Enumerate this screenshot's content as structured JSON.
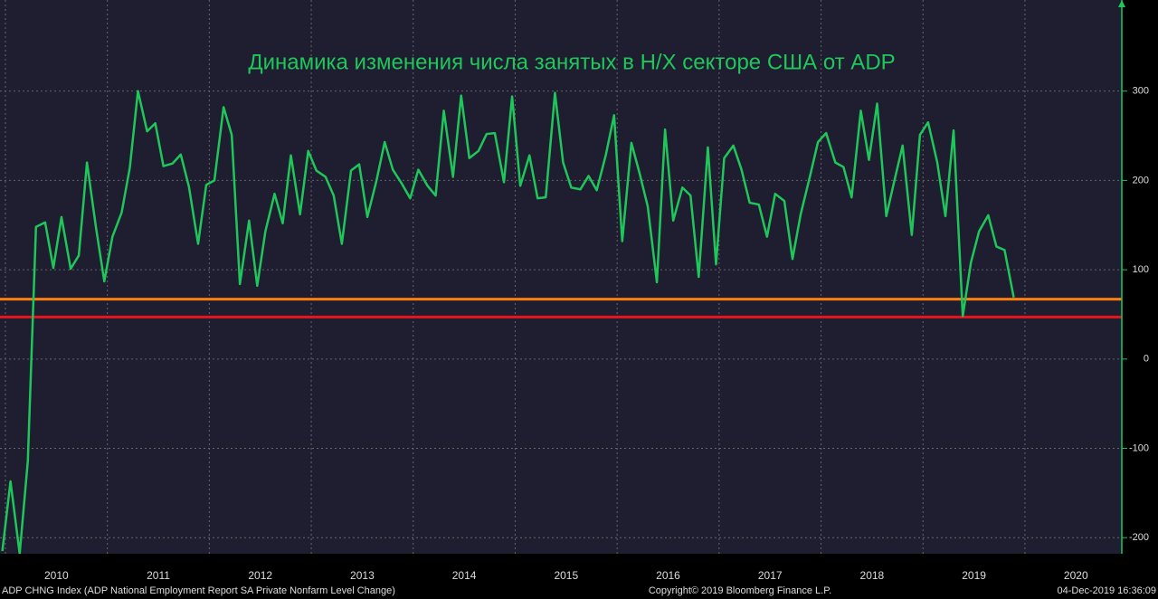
{
  "chart_data": {
    "type": "line",
    "title": "Динамика изменения числа занятых в Н/Х секторе США от ADP",
    "source": "ADP CHNG Index (ADP National Employment Report SA Private Nonfarm Level Change)",
    "copyright": "Copyright© 2019 Bloomberg Finance L.P.",
    "timestamp": "04-Dec-2019 16:36:09",
    "x": [
      2009.97,
      2010.05,
      2010.14,
      2010.22,
      2010.3,
      2010.39,
      2010.47,
      2010.55,
      2010.64,
      2010.72,
      2010.8,
      2010.89,
      2010.97,
      2011.05,
      2011.14,
      2011.22,
      2011.3,
      2011.39,
      2011.47,
      2011.55,
      2011.64,
      2011.72,
      2011.8,
      2011.89,
      2011.97,
      2012.05,
      2012.14,
      2012.22,
      2012.3,
      2012.39,
      2012.47,
      2012.55,
      2012.64,
      2012.72,
      2012.8,
      2012.89,
      2012.97,
      2013.05,
      2013.14,
      2013.22,
      2013.3,
      2013.39,
      2013.47,
      2013.55,
      2013.64,
      2013.72,
      2013.8,
      2013.89,
      2013.97,
      2014.05,
      2014.14,
      2014.22,
      2014.3,
      2014.39,
      2014.47,
      2014.55,
      2014.64,
      2014.72,
      2014.8,
      2014.89,
      2014.97,
      2015.05,
      2015.14,
      2015.22,
      2015.3,
      2015.39,
      2015.47,
      2015.55,
      2015.64,
      2015.72,
      2015.8,
      2015.89,
      2015.97,
      2016.05,
      2016.14,
      2016.22,
      2016.3,
      2016.39,
      2016.47,
      2016.55,
      2016.64,
      2016.72,
      2016.8,
      2016.89,
      2016.97,
      2017.05,
      2017.14,
      2017.22,
      2017.3,
      2017.39,
      2017.47,
      2017.55,
      2017.64,
      2017.72,
      2017.8,
      2017.89,
      2017.97,
      2018.05,
      2018.14,
      2018.22,
      2018.3,
      2018.39,
      2018.47,
      2018.55,
      2018.64,
      2018.72,
      2018.8,
      2018.89,
      2018.97,
      2019.05,
      2019.14,
      2019.22,
      2019.3,
      2019.39,
      2019.47,
      2019.55,
      2019.64,
      2019.72,
      2019.8,
      2019.89
    ],
    "series": [
      {
        "color": "#1fc75a",
        "values": [
          -215,
          -137,
          -218,
          -114,
          148,
          153,
          102,
          159,
          101,
          116,
          220,
          146,
          87,
          137,
          164,
          214,
          300,
          255,
          264,
          216,
          219,
          229,
          193,
          129,
          195,
          200,
          282,
          251,
          84,
          155,
          82,
          143,
          185,
          152,
          228,
          162,
          233,
          211,
          204,
          183,
          129,
          211,
          218,
          159,
          200,
          243,
          212,
          196,
          180,
          212,
          194,
          183,
          278,
          204,
          295,
          225,
          233,
          252,
          253,
          198,
          294,
          194,
          228,
          180,
          181,
          298,
          220,
          192,
          190,
          205,
          189,
          229,
          273,
          132,
          242,
          208,
          171,
          86,
          257,
          155,
          192,
          183,
          92,
          237,
          106,
          225,
          239,
          212,
          175,
          173,
          137,
          185,
          177,
          112,
          162,
          204,
          243,
          253,
          220,
          215,
          181,
          278,
          223,
          286,
          160,
          200,
          239,
          139,
          251,
          265,
          220,
          160,
          256,
          48,
          108,
          143,
          161,
          126,
          122,
          69
        ]
      }
    ],
    "hlines": [
      {
        "value": 67,
        "color": "#ff7f0e"
      },
      {
        "value": 47,
        "color": "#e8141e"
      }
    ],
    "xlim": [
      2009.947,
      2020.95
    ],
    "xticks": [
      2010,
      2011,
      2012,
      2013,
      2014,
      2015,
      2016,
      2017,
      2018,
      2019,
      2020
    ],
    "ylim": [
      -218,
      402
    ],
    "yticks": [
      -200,
      -100,
      0,
      100,
      200,
      300
    ],
    "grid": true
  }
}
